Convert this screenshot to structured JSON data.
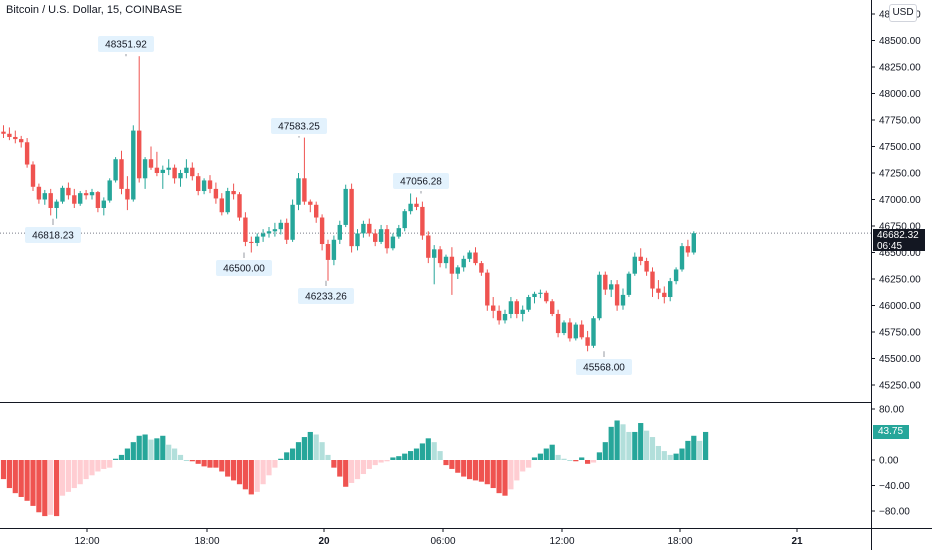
{
  "header": {
    "title": "Bitcoin / U.S. Dollar, 15, COINBASE",
    "currency_button": "USD"
  },
  "last_price": {
    "value": "46682.32",
    "countdown": "06:45"
  },
  "oscillator_last": "43.75",
  "colors": {
    "up": "#26a69a",
    "down": "#ef5350",
    "up_light": "#b2dfdb",
    "down_light": "#ffcdd2",
    "axis": "#131722",
    "label_bg": "#e3f2fd"
  },
  "chart_data": [
    {
      "type": "candlestick",
      "title": "Bitcoin / U.S. Dollar, 15, COINBASE",
      "y_ticks": [
        45250,
        45500,
        45750,
        46000,
        46250,
        46500,
        46750,
        47000,
        47250,
        47500,
        47750,
        48000,
        48250,
        48500,
        48750
      ],
      "y_tick_labels": [
        "45250.00",
        "45500.00",
        "45750.00",
        "46000.00",
        "46250.00",
        "46500.00",
        "46750.00",
        "47000.00",
        "47250.00",
        "47500.00",
        "47750.00",
        "48000.00",
        "48250.00",
        "48500.00",
        "48750.00"
      ],
      "ylim": [
        45130,
        48830
      ],
      "x_ticks": [
        "12:00",
        "18:00",
        "20",
        "06:00",
        "12:00",
        "18:00",
        "21"
      ],
      "last_value": 46682.32,
      "candles": [
        [
          47640,
          47700,
          47580,
          47620
        ],
        [
          47620,
          47680,
          47560,
          47590
        ],
        [
          47590,
          47650,
          47530,
          47570
        ],
        [
          47570,
          47600,
          47490,
          47540
        ],
        [
          47540,
          47580,
          47300,
          47330
        ],
        [
          47330,
          47360,
          47080,
          47120
        ],
        [
          47120,
          47150,
          46960,
          47000
        ],
        [
          47000,
          47090,
          46950,
          47060
        ],
        [
          47060,
          47100,
          46850,
          46920
        ],
        [
          46920,
          47000,
          46820,
          46980
        ],
        [
          46980,
          47130,
          46960,
          47110
        ],
        [
          47110,
          47160,
          47000,
          47040
        ],
        [
          47040,
          47100,
          46920,
          46960
        ],
        [
          46960,
          47080,
          46940,
          47060
        ],
        [
          47060,
          47090,
          47000,
          47040
        ],
        [
          47040,
          47100,
          47000,
          47070
        ],
        [
          47070,
          47080,
          46880,
          46920
        ],
        [
          46920,
          47020,
          46850,
          46990
        ],
        [
          46990,
          47200,
          46970,
          47180
        ],
        [
          47180,
          47400,
          47160,
          47380
        ],
        [
          47380,
          47460,
          47050,
          47100
        ],
        [
          47100,
          47220,
          46900,
          47000
        ],
        [
          47000,
          47700,
          46980,
          47650
        ],
        [
          47650,
          48352,
          47160,
          47200
        ],
        [
          47200,
          47400,
          47100,
          47380
        ],
        [
          47380,
          47500,
          47280,
          47300
        ],
        [
          47300,
          47450,
          47220,
          47250
        ],
        [
          47250,
          47320,
          47100,
          47280
        ],
        [
          47280,
          47380,
          47230,
          47300
        ],
        [
          47300,
          47330,
          47150,
          47200
        ],
        [
          47200,
          47280,
          47120,
          47250
        ],
        [
          47250,
          47380,
          47200,
          47300
        ],
        [
          47300,
          47350,
          47180,
          47220
        ],
        [
          47220,
          47250,
          47040,
          47080
        ],
        [
          47080,
          47200,
          47050,
          47180
        ],
        [
          47180,
          47230,
          47060,
          47100
        ],
        [
          47100,
          47160,
          46960,
          47010
        ],
        [
          47010,
          47060,
          46850,
          46880
        ],
        [
          46880,
          47110,
          46860,
          47080
        ],
        [
          47080,
          47150,
          47000,
          47050
        ],
        [
          47050,
          47070,
          46800,
          46830
        ],
        [
          46830,
          46880,
          46560,
          46600
        ],
        [
          46600,
          46650,
          46500,
          46590
        ],
        [
          46590,
          46680,
          46560,
          46650
        ],
        [
          46650,
          46720,
          46600,
          46680
        ],
        [
          46680,
          46740,
          46640,
          46700
        ],
        [
          46700,
          46780,
          46650,
          46720
        ],
        [
          46720,
          46810,
          46670,
          46780
        ],
        [
          46780,
          46820,
          46580,
          46620
        ],
        [
          46620,
          47000,
          46600,
          46950
        ],
        [
          46950,
          47250,
          46900,
          47200
        ],
        [
          47200,
          47584,
          46950,
          46980
        ],
        [
          46980,
          47000,
          46880,
          46950
        ],
        [
          46950,
          46980,
          46780,
          46830
        ],
        [
          46830,
          46860,
          46520,
          46580
        ],
        [
          46580,
          46620,
          46234,
          46430
        ],
        [
          46430,
          46660,
          46380,
          46620
        ],
        [
          46620,
          46800,
          46580,
          46760
        ],
        [
          46760,
          47140,
          46740,
          47100
        ],
        [
          47100,
          47150,
          46500,
          46560
        ],
        [
          46560,
          46720,
          46520,
          46680
        ],
        [
          46680,
          46800,
          46640,
          46770
        ],
        [
          46770,
          46820,
          46650,
          46680
        ],
        [
          46680,
          46720,
          46560,
          46600
        ],
        [
          46600,
          46760,
          46580,
          46720
        ],
        [
          46720,
          46760,
          46490,
          46540
        ],
        [
          46540,
          46680,
          46520,
          46650
        ],
        [
          46650,
          46760,
          46630,
          46730
        ],
        [
          46730,
          46910,
          46700,
          46890
        ],
        [
          46890,
          47057,
          46860,
          46960
        ],
        [
          46960,
          47020,
          46900,
          46930
        ],
        [
          46930,
          46980,
          46620,
          46660
        ],
        [
          46660,
          46700,
          46400,
          46450
        ],
        [
          46450,
          46570,
          46200,
          46530
        ],
        [
          46530,
          46560,
          46360,
          46400
        ],
        [
          46400,
          46480,
          46350,
          46460
        ],
        [
          46460,
          46550,
          46100,
          46300
        ],
        [
          46300,
          46380,
          46250,
          46360
        ],
        [
          46360,
          46470,
          46320,
          46440
        ],
        [
          46440,
          46520,
          46410,
          46500
        ],
        [
          46500,
          46550,
          46380,
          46400
        ],
        [
          46400,
          46420,
          46280,
          46310
        ],
        [
          46310,
          46340,
          45950,
          46000
        ],
        [
          46000,
          46080,
          45880,
          45950
        ],
        [
          45950,
          46000,
          45820,
          45860
        ],
        [
          45860,
          45960,
          45830,
          45920
        ],
        [
          45920,
          46080,
          45880,
          46040
        ],
        [
          46040,
          46060,
          45880,
          45920
        ],
        [
          45920,
          46000,
          45850,
          45960
        ],
        [
          45960,
          46100,
          45940,
          46080
        ],
        [
          46080,
          46130,
          46020,
          46110
        ],
        [
          46110,
          46150,
          46070,
          46120
        ],
        [
          46120,
          46140,
          46020,
          46040
        ],
        [
          46040,
          46060,
          45900,
          45920
        ],
        [
          45920,
          45960,
          45700,
          45740
        ],
        [
          45740,
          45860,
          45720,
          45840
        ],
        [
          45840,
          45880,
          45660,
          45690
        ],
        [
          45690,
          45840,
          45670,
          45820
        ],
        [
          45820,
          45860,
          45680,
          45700
        ],
        [
          45700,
          45760,
          45568,
          45620
        ],
        [
          45620,
          45900,
          45600,
          45880
        ],
        [
          45880,
          46320,
          45860,
          46290
        ],
        [
          46290,
          46320,
          46100,
          46150
        ],
        [
          46150,
          46240,
          46080,
          46200
        ],
        [
          46200,
          46240,
          45950,
          46000
        ],
        [
          46000,
          46160,
          45960,
          46100
        ],
        [
          46100,
          46320,
          46080,
          46300
        ],
        [
          46300,
          46500,
          46280,
          46460
        ],
        [
          46460,
          46540,
          46380,
          46420
        ],
        [
          46420,
          46450,
          46280,
          46320
        ],
        [
          46320,
          46360,
          46080,
          46160
        ],
        [
          46160,
          46240,
          46060,
          46120
        ],
        [
          46120,
          46180,
          46020,
          46080
        ],
        [
          46080,
          46260,
          46040,
          46230
        ],
        [
          46230,
          46360,
          46200,
          46340
        ],
        [
          46340,
          46590,
          46320,
          46560
        ],
        [
          46560,
          46620,
          46460,
          46500
        ],
        [
          46500,
          46700,
          46480,
          46682
        ]
      ]
    },
    {
      "type": "bar",
      "name": "oscillator",
      "y_ticks": [
        80,
        0,
        -40,
        -80
      ],
      "y_tick_labels": [
        "80.00",
        "0.00",
        "−40.00",
        "−80.00"
      ],
      "ylim": [
        -95,
        95
      ],
      "last_value": 43.75,
      "values": [
        -30,
        -44,
        -52,
        -58,
        -64,
        -72,
        -82,
        -88,
        -86,
        -88,
        -56,
        -50,
        -44,
        -38,
        -30,
        -24,
        -18,
        -14,
        -12,
        2,
        8,
        18,
        28,
        38,
        40,
        32,
        34,
        38,
        24,
        18,
        8,
        0,
        -2,
        -6,
        -10,
        -12,
        -12,
        -18,
        -26,
        -32,
        -38,
        -46,
        -54,
        -50,
        -38,
        -24,
        -12,
        2,
        12,
        18,
        28,
        36,
        44,
        40,
        28,
        8,
        -12,
        -26,
        -42,
        -36,
        -30,
        -22,
        -14,
        -8,
        -4,
        -2,
        4,
        6,
        10,
        14,
        18,
        26,
        34,
        28,
        14,
        -8,
        -14,
        -20,
        -26,
        -30,
        -32,
        -34,
        -38,
        -44,
        -52,
        -56,
        -46,
        -32,
        -18,
        -12,
        4,
        10,
        18,
        24,
        8,
        2,
        0,
        -2,
        4,
        -6,
        -4,
        12,
        28,
        52,
        62,
        56,
        44,
        44,
        58,
        46,
        36,
        22,
        14,
        8,
        10,
        18,
        30,
        38,
        30,
        44
      ],
      "colors": [
        "#ef5350",
        "#ffcdd2",
        "#26a69a",
        "#b2dfdb"
      ]
    }
  ],
  "annotations": [
    {
      "label": "48351.92"
    },
    {
      "label": "47583.25"
    },
    {
      "label": "47056.28"
    },
    {
      "label": "46818.23"
    },
    {
      "label": "46500.00"
    },
    {
      "label": "46233.26"
    },
    {
      "label": "45568.00"
    }
  ]
}
